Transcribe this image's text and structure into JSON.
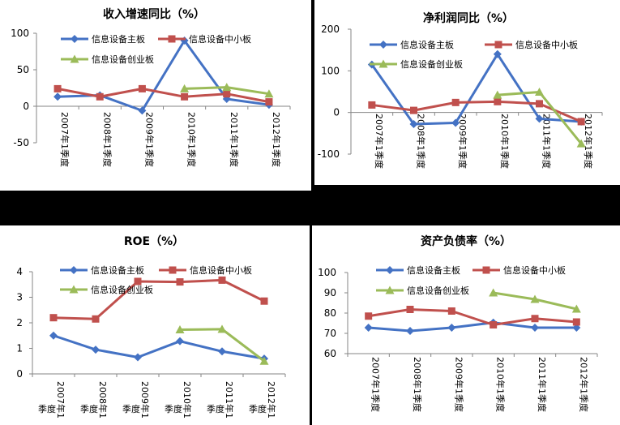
{
  "colors": {
    "main": "#4472C4",
    "sme": "#C0504D",
    "gem": "#9BBB59"
  },
  "chart_data": [
    {
      "id": "revenue",
      "type": "line",
      "title": "收入增速同比（%）",
      "categories": [
        "2007年1季度",
        "2008年1季度",
        "2009年1季度",
        "2010年1季度",
        "2011年1季度",
        "2012年1季度"
      ],
      "ylim": [
        -50,
        100
      ],
      "yticks": [
        -50,
        0,
        50,
        100
      ],
      "series": [
        {
          "name": "信息设备主板",
          "color_key": "main",
          "marker": "diamond",
          "values": [
            13,
            15,
            -6,
            90,
            10,
            2
          ]
        },
        {
          "name": "信息设备中小板",
          "color_key": "sme",
          "marker": "square",
          "values": [
            24,
            13,
            24,
            13,
            17,
            6
          ]
        },
        {
          "name": "信息设备创业板",
          "color_key": "gem",
          "marker": "triangle",
          "values": [
            null,
            null,
            null,
            24,
            26,
            17
          ]
        }
      ]
    },
    {
      "id": "netprofit",
      "type": "line",
      "title": "净利润同比（%）",
      "categories": [
        "2007年1季度",
        "2008年1季度",
        "2009年1季度",
        "2010年1季度",
        "2011年1季度",
        "2012年1季度"
      ],
      "ylim": [
        -100,
        200
      ],
      "yticks": [
        -100,
        0,
        100,
        200
      ],
      "series": [
        {
          "name": "信息设备主板",
          "color_key": "main",
          "marker": "diamond",
          "values": [
            115,
            -28,
            -25,
            140,
            -15,
            -22
          ]
        },
        {
          "name": "信息设备中小板",
          "color_key": "sme",
          "marker": "square",
          "values": [
            18,
            5,
            24,
            26,
            21,
            -22
          ]
        },
        {
          "name": "信息设备创业板",
          "color_key": "gem",
          "marker": "triangle",
          "values": [
            null,
            null,
            null,
            42,
            49,
            -75
          ]
        }
      ]
    },
    {
      "id": "roe",
      "type": "line",
      "title": "ROE（%）",
      "categories": [
        "2007年1季度",
        "2008年1季度",
        "2009年1季度",
        "2010年1季度",
        "2011年1季度",
        "2012年1季度"
      ],
      "ylim": [
        0,
        4
      ],
      "yticks": [
        0,
        1,
        2,
        3,
        4
      ],
      "series": [
        {
          "name": "信息设备主板",
          "color_key": "main",
          "marker": "diamond",
          "values": [
            1.5,
            0.95,
            0.65,
            1.28,
            0.88,
            0.6
          ]
        },
        {
          "name": "信息设备中小板",
          "color_key": "sme",
          "marker": "square",
          "values": [
            2.2,
            2.15,
            3.62,
            3.6,
            3.67,
            2.85
          ]
        },
        {
          "name": "信息设备创业板",
          "color_key": "gem",
          "marker": "triangle",
          "values": [
            null,
            null,
            null,
            1.73,
            1.75,
            0.5
          ]
        }
      ]
    },
    {
      "id": "debt",
      "type": "line",
      "title": "资产负债率（%）",
      "categories": [
        "2007年1季度",
        "2008年1季度",
        "2009年1季度",
        "2010年1季度",
        "2011年1季度",
        "2012年1季度"
      ],
      "ylim": [
        60,
        100
      ],
      "yticks": [
        60,
        70,
        80,
        90,
        100
      ],
      "series": [
        {
          "name": "信息设备主板",
          "color_key": "main",
          "marker": "diamond",
          "values": [
            72.8,
            71.2,
            72.8,
            75.3,
            72.8,
            72.8
          ]
        },
        {
          "name": "信息设备中小板",
          "color_key": "sme",
          "marker": "square",
          "values": [
            78.5,
            81.8,
            81,
            74.2,
            77.3,
            75.6
          ]
        },
        {
          "name": "信息设备创业板",
          "color_key": "gem",
          "marker": "triangle",
          "values": [
            null,
            null,
            null,
            90,
            86.8,
            82
          ]
        }
      ]
    }
  ]
}
